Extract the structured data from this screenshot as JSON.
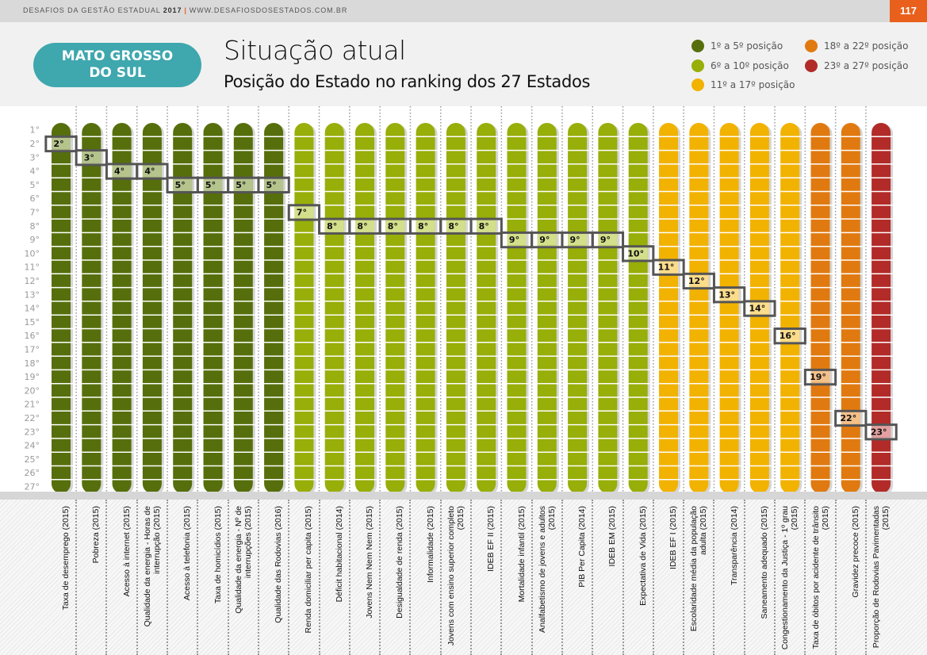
{
  "header": {
    "publication": "DESAFIOS DA GESTÃO ESTADUAL",
    "year": "2017",
    "separator": "|",
    "website": "WWW.DESAFIOSDOSESTADOS.COM.BR",
    "page_number": "117"
  },
  "state_badge": {
    "line1": "MATO GROSSO",
    "line2": "DO SUL",
    "color": "#3fa7ae"
  },
  "title": "Situação atual",
  "subtitle": "Posição do Estado no ranking dos 27 Estados",
  "legend": [
    {
      "label": "1º a 5º posição",
      "color": "#566f0c",
      "range": [
        1,
        5
      ]
    },
    {
      "label": "6º a 10º posição",
      "color": "#98ae09",
      "range": [
        6,
        10
      ]
    },
    {
      "label": "11º a 17º posição",
      "color": "#f2b200",
      "range": [
        11,
        17
      ]
    },
    {
      "label": "18º a 22º posição",
      "color": "#e07a10",
      "range": [
        18,
        22
      ]
    },
    {
      "label": "23º a 27º posição",
      "color": "#b22b29",
      "range": [
        23,
        27
      ]
    }
  ],
  "chart_data": {
    "type": "table",
    "title": "Situação atual — Posição do Estado no ranking dos 27 Estados",
    "ylabel": "Posição",
    "y_ticks": [
      "1°",
      "2°",
      "3°",
      "4°",
      "5°",
      "6°",
      "7°",
      "8°",
      "9°",
      "10°",
      "11°",
      "12°",
      "13°",
      "14°",
      "15°",
      "16°",
      "17°",
      "18°",
      "19°",
      "20°",
      "21°",
      "22°",
      "23°",
      "24°",
      "25°",
      "26°",
      "27°"
    ],
    "ylim": [
      1,
      27
    ],
    "categories": [
      "Taxa de desemprego (2015)",
      "Pobreza (2015)",
      "Acesso à internet (2015)",
      "Qualidade da energia - Horas de interrupção (2015)",
      "Acesso à telefonia (2015)",
      "Taxa de homicídios (2015)",
      "Qualidade da energia - Nº de interrupções (2015)",
      "Qualidade das Rodovias (2016)",
      "Renda domiciliar per capita (2015)",
      "Déficit habitacional (2014)",
      "Jovens Nem Nem Nem (2015)",
      "Desigualdade de renda (2015)",
      "Informalidade (2015)",
      "Jovens com ensino superior completo (2015)",
      "IDEB EF II (2015)",
      "Mortalidade infantil (2015)",
      "Analfabetismo de jovens e adultos (2015)",
      "PIB Per Capita (2014)",
      "IDEB EM (2015)",
      "Expectativa de Vida (2015)",
      "IDEB EF I (2015)",
      "Escolaridade média da população adulta (2015)",
      "Transparência (2014)",
      "Saneamento adequado (2015)",
      "Congestionamento da Justiça - 1º grau (2015)",
      "Taxa de óbitos por acidente de trânsito (2015)",
      "Gravidez precoce (2015)",
      "Proporção de Rodovias Pavimentadas (2015)"
    ],
    "values": [
      2,
      3,
      4,
      4,
      5,
      5,
      5,
      5,
      7,
      8,
      8,
      8,
      8,
      8,
      8,
      9,
      9,
      9,
      9,
      10,
      11,
      12,
      13,
      14,
      16,
      19,
      22,
      23
    ],
    "value_labels": [
      "2°",
      "3°",
      "4°",
      "4°",
      "5°",
      "5°",
      "5°",
      "5°",
      "7°",
      "8°",
      "8°",
      "8°",
      "8°",
      "8°",
      "8°",
      "9°",
      "9°",
      "9°",
      "9°",
      "10°",
      "11°",
      "12°",
      "13°",
      "14°",
      "16°",
      "19°",
      "22°",
      "23°"
    ],
    "grid": false,
    "legend_position": "top-right"
  }
}
